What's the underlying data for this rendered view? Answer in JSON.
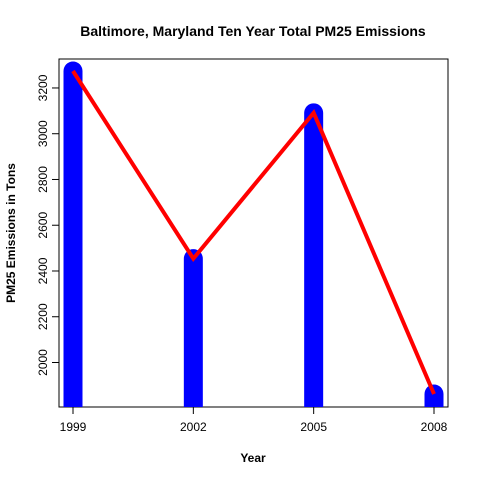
{
  "chart_data": {
    "type": "line",
    "title": "Baltimore, Maryland Ten Year Total PM25 Emissions",
    "xlabel": "Year",
    "ylabel": "PM25 Emissions in Tons",
    "x": [
      1999,
      2002,
      2005,
      2008
    ],
    "values": [
      3274.18,
      2453.92,
      3091.35,
      1862.28
    ],
    "xlim": [
      1999,
      2008
    ],
    "ylim": [
      1862.28,
      3274.18
    ],
    "x_ticks": [
      "1999",
      "2002",
      "2005",
      "2008"
    ],
    "y_ticks": [
      2000,
      2200,
      2400,
      2600,
      2800,
      3000,
      3200
    ],
    "grid": false,
    "colors": {
      "bars": "#0000ff",
      "line": "#ff0000",
      "frame": "#000000"
    }
  }
}
